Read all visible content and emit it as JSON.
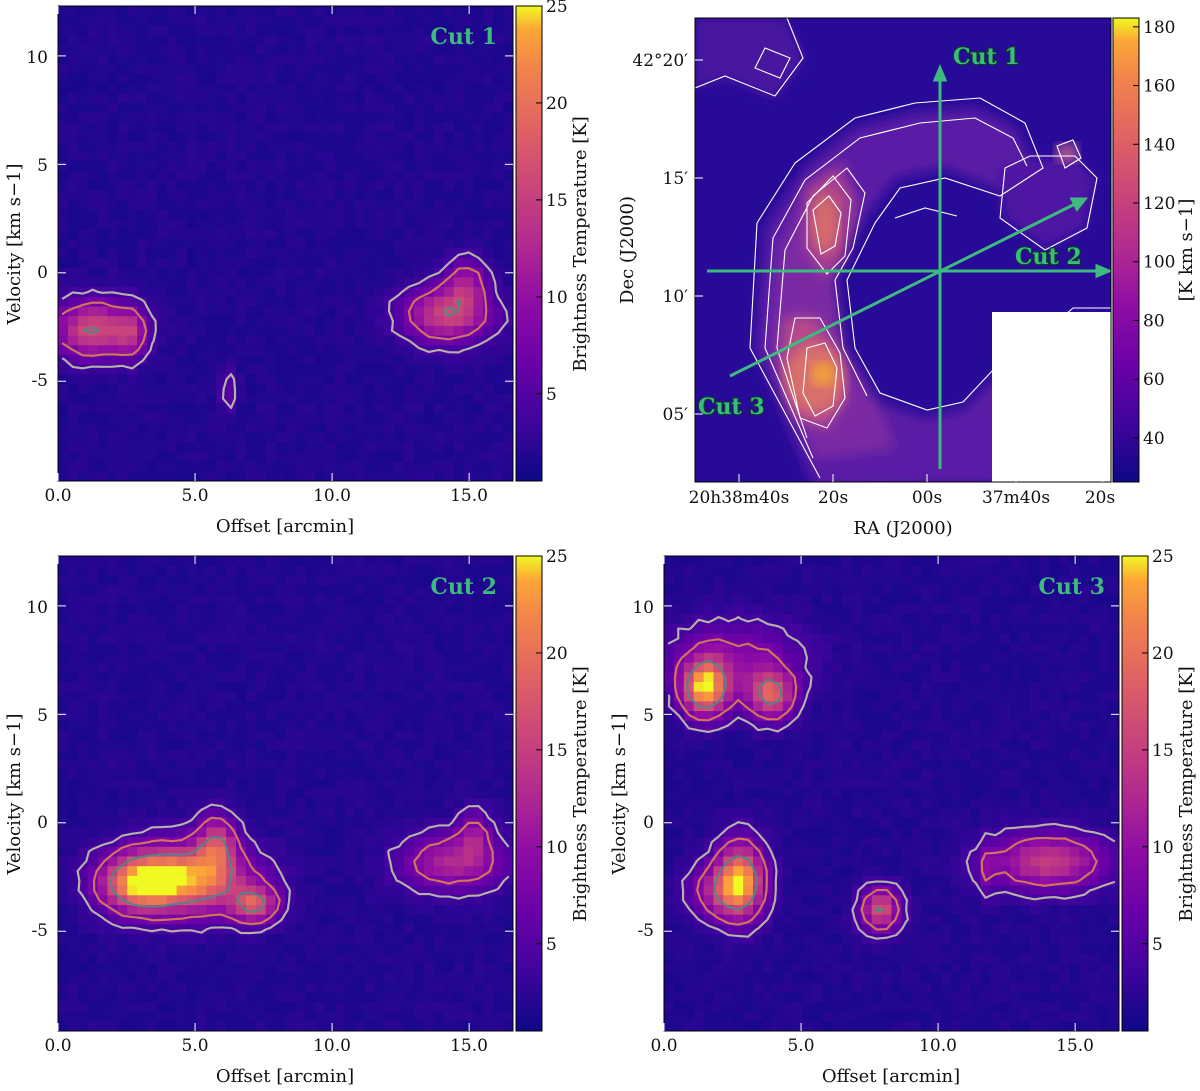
{
  "figure": {
    "colors": {
      "background": "#1f0a8a",
      "cut_green": "#3dbb7e",
      "contour_light": "#b7b2a8",
      "contour_mid": "#d0765a",
      "contour_dark": "#5f7f88",
      "map_contour": "#ffffff"
    }
  },
  "chart_data": [
    {
      "id": "pv_cut1",
      "type": "heatmap",
      "panel_label": "Cut 1",
      "xlabel": "Offset [arcmin]",
      "ylabel": "Velocity [km s−1]",
      "xlim": [
        0,
        16.6
      ],
      "ylim": [
        -9.6,
        12.3
      ],
      "xticks": [
        0,
        5,
        10,
        15
      ],
      "xtick_labels": [
        "0.0",
        "5.0",
        "10.0",
        "15.0"
      ],
      "yticks": [
        -5,
        0,
        5,
        10
      ],
      "ytick_labels": [
        "-5",
        "0",
        "5",
        "10"
      ],
      "colorbar": {
        "label": "Brightness Temperature [K]",
        "range": [
          0.5,
          25
        ],
        "ticks": [
          5,
          10,
          15,
          20,
          25
        ],
        "tick_labels": [
          "5",
          "10",
          "15",
          "20",
          "25"
        ]
      },
      "contour_levels_K": [
        4,
        8,
        16
      ],
      "emission_components": [
        {
          "offset": 1.3,
          "velocity": -2.6,
          "width_offset": 1.0,
          "width_velocity": 0.9,
          "peak_K": 15
        },
        {
          "offset": 2.7,
          "velocity": -2.8,
          "width_offset": 0.4,
          "width_velocity": 0.8,
          "peak_K": 8
        },
        {
          "offset": 14.2,
          "velocity": -1.9,
          "width_offset": 1.1,
          "width_velocity": 0.9,
          "peak_K": 14
        },
        {
          "offset": 14.9,
          "velocity": -0.4,
          "width_offset": 0.5,
          "width_velocity": 0.8,
          "peak_K": 8
        },
        {
          "offset": 6.2,
          "velocity": -5.4,
          "width_offset": 0.2,
          "width_velocity": 0.8,
          "peak_K": 4.5
        }
      ]
    },
    {
      "id": "integrated_map",
      "type": "heatmap",
      "xlabel": "RA (J2000)",
      "ylabel": "Dec (J2000)",
      "xtick_labels": [
        "20h38m40s",
        "20s",
        "00s",
        "37m40s",
        "20s"
      ],
      "ytick_labels": [
        "42°20′",
        "15′",
        "10′",
        "05′"
      ],
      "colorbar": {
        "label": "[K km s−1]",
        "range": [
          25,
          183
        ],
        "ticks": [
          40,
          60,
          80,
          100,
          120,
          140,
          160,
          180
        ],
        "tick_labels": [
          "40",
          "60",
          "80",
          "100",
          "120",
          "140",
          "160",
          "180"
        ]
      },
      "cuts": [
        {
          "name": "Cut 1",
          "orientation": "vertical"
        },
        {
          "name": "Cut 2",
          "orientation": "horizontal"
        },
        {
          "name": "Cut 3",
          "orientation": "diagonal"
        }
      ]
    },
    {
      "id": "pv_cut2",
      "type": "heatmap",
      "panel_label": "Cut 2",
      "xlabel": "Offset [arcmin]",
      "ylabel": "Velocity [km s−1]",
      "xlim": [
        0,
        16.6
      ],
      "ylim": [
        -9.6,
        12.3
      ],
      "xticks": [
        0,
        5,
        10,
        15
      ],
      "xtick_labels": [
        "0.0",
        "5.0",
        "10.0",
        "15.0"
      ],
      "yticks": [
        -5,
        0,
        5,
        10
      ],
      "ytick_labels": [
        "-5",
        "0",
        "5",
        "10"
      ],
      "colorbar": {
        "label": "Brightness Temperature [K]",
        "range": [
          0.5,
          25
        ],
        "ticks": [
          5,
          10,
          15,
          20,
          25
        ],
        "tick_labels": [
          "5",
          "10",
          "15",
          "20",
          "25"
        ]
      },
      "contour_levels_K": [
        4,
        8,
        16
      ],
      "emission_components": [
        {
          "offset": 4.6,
          "velocity": -2.6,
          "width_offset": 1.6,
          "width_velocity": 1.1,
          "peak_K": 22
        },
        {
          "offset": 2.8,
          "velocity": -2.8,
          "width_offset": 0.9,
          "width_velocity": 0.9,
          "peak_K": 14
        },
        {
          "offset": 7.2,
          "velocity": -3.8,
          "width_offset": 0.6,
          "width_velocity": 0.6,
          "peak_K": 14
        },
        {
          "offset": 5.8,
          "velocity": -0.9,
          "width_offset": 0.5,
          "width_velocity": 0.9,
          "peak_K": 12
        },
        {
          "offset": 14.4,
          "velocity": -1.8,
          "width_offset": 1.3,
          "width_velocity": 0.9,
          "peak_K": 11
        },
        {
          "offset": 15.2,
          "velocity": -0.5,
          "width_offset": 0.4,
          "width_velocity": 0.8,
          "peak_K": 7
        }
      ]
    },
    {
      "id": "pv_cut3",
      "type": "heatmap",
      "panel_label": "Cut 3",
      "xlabel": "Offset [arcmin]",
      "ylabel": "Velocity [km s−1]",
      "xlim": [
        0,
        16.6
      ],
      "ylim": [
        -9.6,
        12.3
      ],
      "xticks": [
        0,
        5,
        10,
        15
      ],
      "xtick_labels": [
        "0.0",
        "5.0",
        "10.0",
        "15.0"
      ],
      "yticks": [
        -5,
        0,
        5,
        10
      ],
      "ytick_labels": [
        "-5",
        "0",
        "5",
        "10"
      ],
      "colorbar": {
        "label": "Brightness Temperature [K]",
        "range": [
          0.5,
          25
        ],
        "ticks": [
          5,
          10,
          15,
          20,
          25
        ],
        "tick_labels": [
          "5",
          "10",
          "15",
          "20",
          "25"
        ]
      },
      "contour_levels_K": [
        4,
        8,
        16
      ],
      "emission_components": [
        {
          "offset": 1.5,
          "velocity": 6.2,
          "width_offset": 0.6,
          "width_velocity": 0.9,
          "peak_K": 22
        },
        {
          "offset": 3.9,
          "velocity": 5.9,
          "width_offset": 0.6,
          "width_velocity": 0.8,
          "peak_K": 16
        },
        {
          "offset": 2.6,
          "velocity": 7.6,
          "width_offset": 1.7,
          "width_velocity": 1.2,
          "peak_K": 7
        },
        {
          "offset": 2.8,
          "velocity": -2.6,
          "width_offset": 0.6,
          "width_velocity": 1.2,
          "peak_K": 20
        },
        {
          "offset": 2.0,
          "velocity": -3.2,
          "width_offset": 0.8,
          "width_velocity": 0.9,
          "peak_K": 9
        },
        {
          "offset": 7.9,
          "velocity": -4.0,
          "width_offset": 0.5,
          "width_velocity": 0.7,
          "peak_K": 15
        },
        {
          "offset": 14.0,
          "velocity": -1.8,
          "width_offset": 1.5,
          "width_velocity": 0.9,
          "peak_K": 13
        },
        {
          "offset": 11.8,
          "velocity": -2.2,
          "width_offset": 0.2,
          "width_velocity": 0.8,
          "peak_K": 4.5
        }
      ]
    }
  ]
}
